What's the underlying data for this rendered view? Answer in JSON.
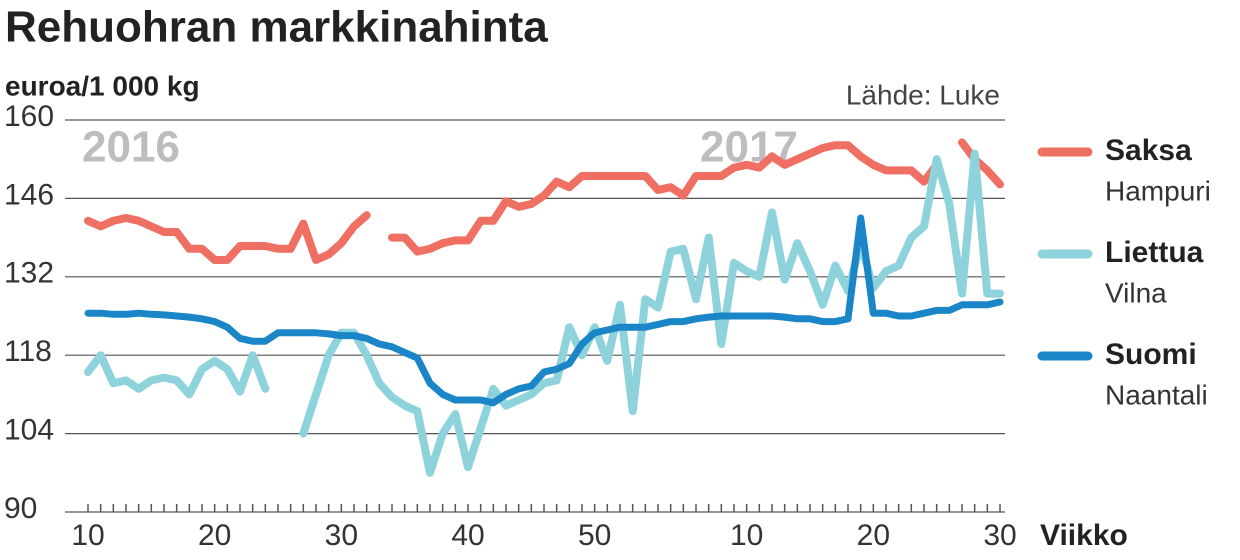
{
  "chart_data": {
    "type": "line",
    "title": "Rehuohran markkinahinta",
    "subtitle": "euroa/1 000 kg",
    "source": "Lähde: Luke",
    "x_label": "Viikko",
    "annotations": [
      "2016",
      "2017"
    ],
    "categories": [
      "10",
      null,
      null,
      null,
      null,
      null,
      null,
      null,
      null,
      null,
      "20",
      null,
      null,
      null,
      null,
      null,
      null,
      null,
      null,
      null,
      "30",
      null,
      null,
      null,
      null,
      null,
      null,
      null,
      null,
      null,
      "40",
      null,
      null,
      null,
      null,
      null,
      null,
      null,
      null,
      null,
      "50",
      null,
      null,
      null,
      null,
      null,
      null,
      null,
      null,
      null,
      null,
      null,
      "10",
      null,
      null,
      null,
      null,
      null,
      null,
      null,
      null,
      null,
      "20",
      null,
      null,
      null,
      null,
      null,
      null,
      null,
      null,
      null,
      "30"
    ],
    "ylim": [
      90,
      160
    ],
    "yticks": [
      90,
      104,
      118,
      132,
      146,
      160
    ],
    "grid": true,
    "legend": "right",
    "series": [
      {
        "name": "Saksa",
        "place": "Hampuri",
        "color": "#ef6f63",
        "values": [
          142,
          141,
          142,
          142.5,
          142,
          141,
          140,
          140,
          137,
          137,
          135,
          135,
          137.5,
          137.5,
          137.5,
          137,
          137,
          141.5,
          135,
          136,
          138,
          141,
          143,
          null,
          139,
          139,
          136.5,
          137,
          138,
          138.5,
          138.5,
          142,
          142,
          145.5,
          144.5,
          145,
          146.5,
          149,
          148,
          150,
          150,
          150,
          150,
          150,
          150,
          147.5,
          148,
          146.5,
          150,
          150,
          150,
          151.5,
          152,
          151.5,
          153.5,
          152,
          153,
          154,
          155,
          155.5,
          155.5,
          153.5,
          152,
          151,
          151,
          151,
          149,
          152,
          null,
          156,
          153,
          151,
          148.5
        ]
      },
      {
        "name": "Liettua",
        "place": "Vilna",
        "color": "#8ed3dc",
        "values": [
          115,
          118,
          113,
          113.5,
          112,
          113.5,
          114,
          113.5,
          111,
          115.5,
          117,
          115.5,
          111.5,
          118,
          112,
          null,
          null,
          104,
          111,
          118,
          122,
          122,
          118,
          113,
          110.5,
          109,
          108,
          97,
          104,
          107.5,
          98,
          105,
          112,
          109,
          110,
          111,
          113,
          113.5,
          123,
          118,
          123,
          117,
          127,
          108,
          128,
          126.5,
          136.5,
          137,
          128,
          139,
          120,
          134.5,
          133,
          132,
          143.5,
          131.5,
          138,
          133,
          127,
          134,
          129.5,
          138,
          130,
          133,
          134,
          139,
          141,
          153,
          145,
          129,
          154,
          129,
          129
        ]
      },
      {
        "name": "Suomi",
        "place": "Naantali",
        "color": "#1a86c8",
        "values": [
          125.5,
          125.5,
          125.3,
          125.3,
          125.5,
          125.3,
          125.2,
          125,
          124.8,
          124.5,
          124,
          123,
          121,
          120.5,
          120.5,
          122,
          122,
          122,
          122,
          121.8,
          121.5,
          121.5,
          121,
          120,
          119.5,
          118.5,
          117.5,
          113,
          111,
          110,
          110,
          110,
          109.5,
          111,
          112,
          112.5,
          115,
          115.5,
          116.5,
          120,
          122,
          122.5,
          123,
          123,
          123,
          123.5,
          124,
          124,
          124.5,
          124.8,
          125,
          125,
          125,
          125,
          125,
          124.8,
          124.5,
          124.5,
          124,
          124,
          124.5,
          142.5,
          125.5,
          125.5,
          125,
          125,
          125.5,
          126,
          126,
          127,
          127,
          127,
          127.5
        ]
      }
    ]
  }
}
